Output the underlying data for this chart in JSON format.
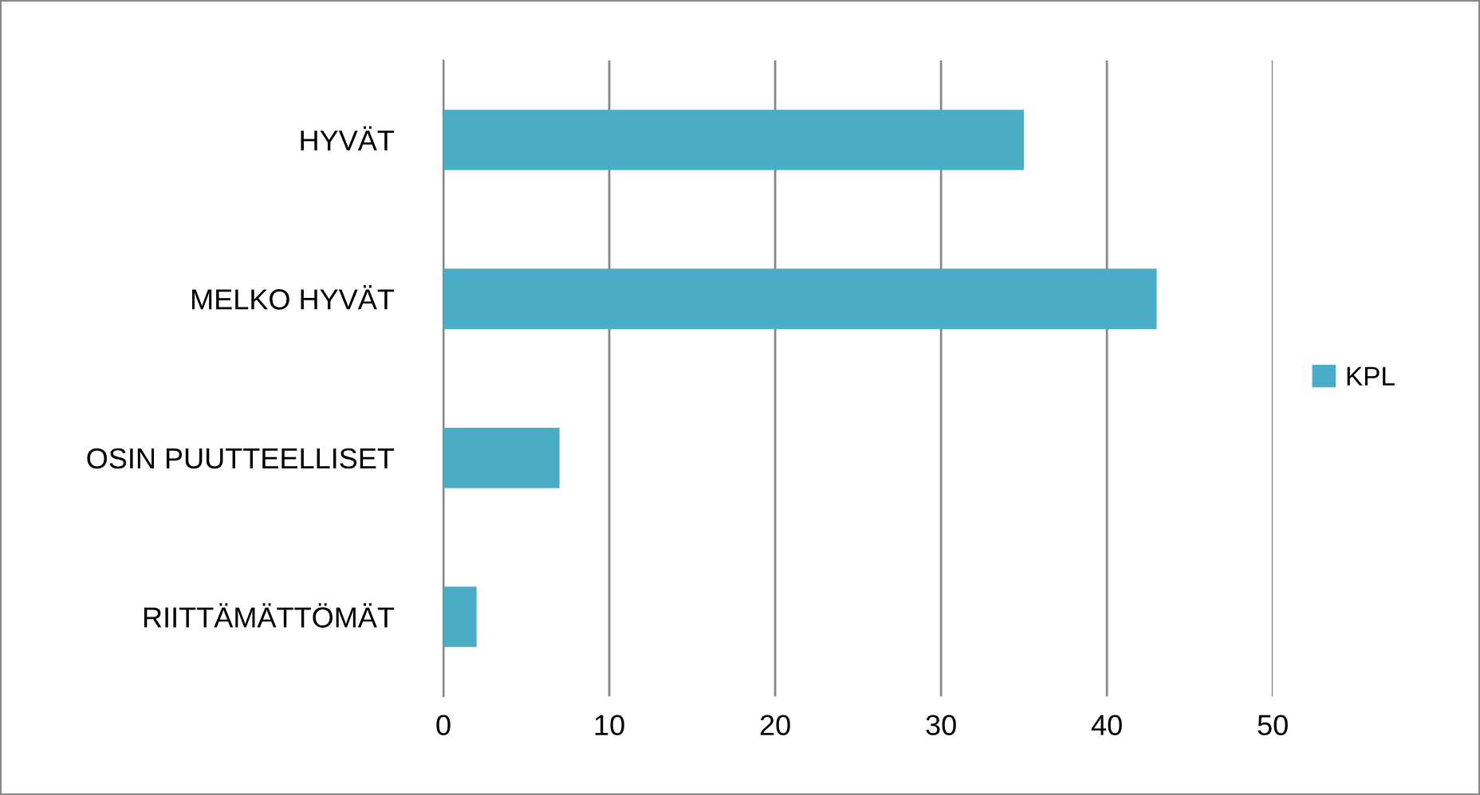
{
  "chart_data": {
    "type": "bar",
    "orientation": "horizontal",
    "categories": [
      "HYVÄT",
      "MELKO HYVÄT",
      "OSIN PUUTTEELLISET",
      "RIITTÄMÄTTÖMÄT"
    ],
    "series": [
      {
        "name": "KPL",
        "color": "#4bacc6",
        "values": [
          35,
          43,
          7,
          2
        ]
      }
    ],
    "xlim": [
      0,
      50
    ],
    "xticks": [
      0,
      10,
      20,
      30,
      40,
      50
    ],
    "grid": "x",
    "legend": "right"
  }
}
